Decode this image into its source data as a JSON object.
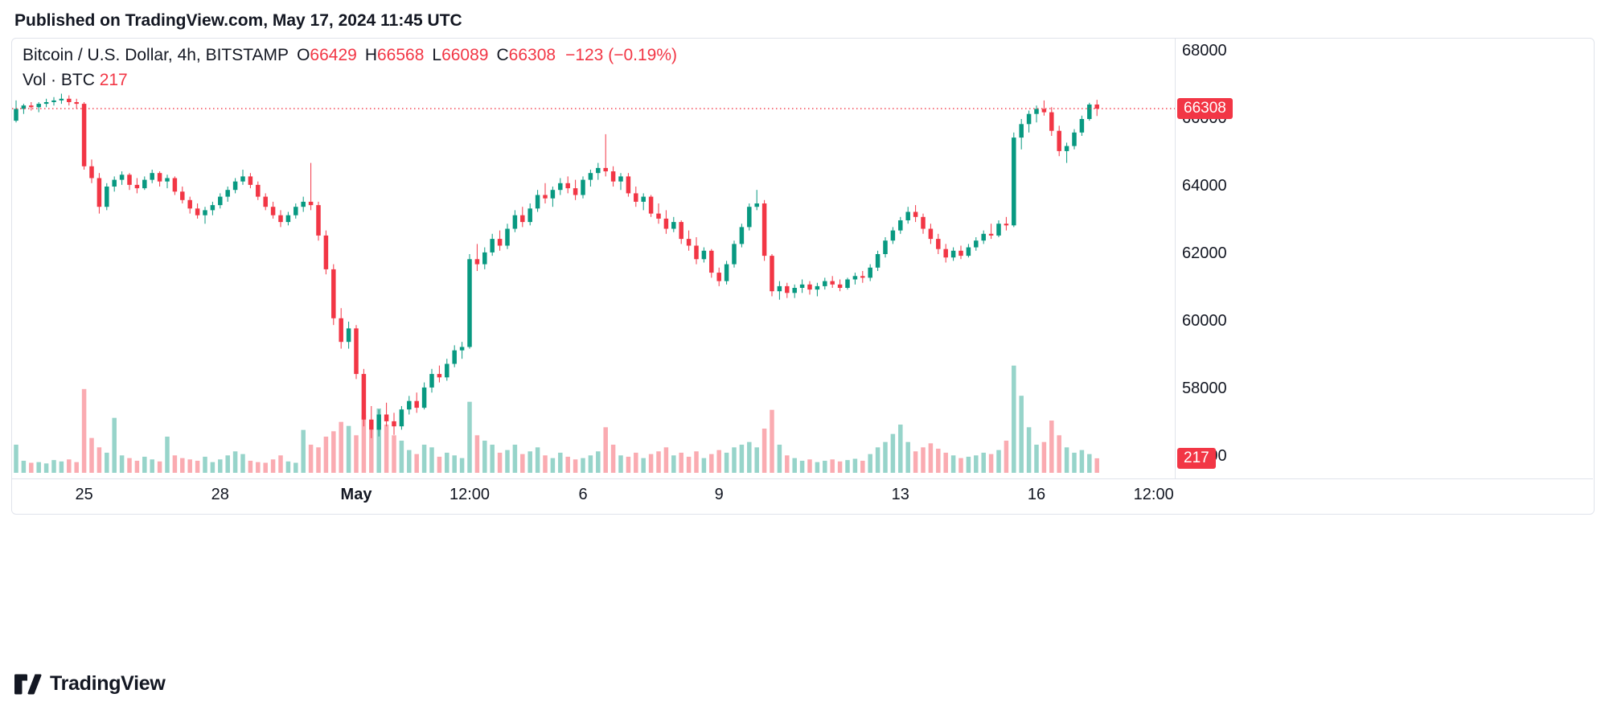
{
  "header": {
    "published": "Published on TradingView.com, May 17, 2024 11:45 UTC"
  },
  "legend": {
    "symbol": "Bitcoin / U.S. Dollar, 4h, BITSTAMP",
    "o_label": "O",
    "open": "66429",
    "h_label": "H",
    "high": "66568",
    "l_label": "L",
    "low": "66089",
    "c_label": "C",
    "close": "66308",
    "change": "−123 (−0.19%)",
    "vol_label": "Vol · BTC",
    "vol_value": "217"
  },
  "badges": {
    "price": "66308",
    "volume": "217"
  },
  "footer": {
    "brand": "TradingView"
  },
  "colors": {
    "up": "#089981",
    "down": "#f23645",
    "accent": "#f23645",
    "text": "#131722",
    "border": "#e0e3eb"
  },
  "chart_data": {
    "type": "candlestick",
    "title": "Bitcoin / U.S. Dollar, 4h, BITSTAMP",
    "interval": "4h",
    "exchange": "BITSTAMP",
    "ylim": [
      56000,
      68000
    ],
    "grid": false,
    "last": {
      "open": 66429,
      "high": 66568,
      "low": 66089,
      "close": 66308,
      "change": -123,
      "change_pct": -0.19,
      "volume": 217
    },
    "price_axis": {
      "ticks": [
        68000,
        66000,
        64000,
        62000,
        60000,
        58000,
        56000
      ]
    },
    "time_axis": {
      "labels": [
        {
          "text": "25",
          "index": 9
        },
        {
          "text": "28",
          "index": 27
        },
        {
          "text": "May",
          "index": 45,
          "emphasis": true
        },
        {
          "text": "12:00",
          "index": 60
        },
        {
          "text": "6",
          "index": 75
        },
        {
          "text": "9",
          "index": 93
        },
        {
          "text": "13",
          "index": 117
        },
        {
          "text": "16",
          "index": 135
        },
        {
          "text": "12:00",
          "index": 150.5
        }
      ]
    },
    "candles": [
      [
        65950,
        66550,
        65900,
        66300
      ],
      [
        66300,
        66450,
        66150,
        66400
      ],
      [
        66400,
        66500,
        66250,
        66350
      ],
      [
        66350,
        66500,
        66200,
        66450
      ],
      [
        66450,
        66600,
        66350,
        66500
      ],
      [
        66500,
        66650,
        66400,
        66550
      ],
      [
        66550,
        66750,
        66450,
        66600
      ],
      [
        66600,
        66700,
        66400,
        66500
      ],
      [
        66500,
        66600,
        66300,
        66450
      ],
      [
        66450,
        66500,
        64500,
        64600
      ],
      [
        64600,
        64800,
        64100,
        64250
      ],
      [
        64250,
        64400,
        63200,
        63400
      ],
      [
        63400,
        64100,
        63300,
        64000
      ],
      [
        64000,
        64300,
        63850,
        64200
      ],
      [
        64200,
        64450,
        64050,
        64350
      ],
      [
        64350,
        64400,
        63900,
        64050
      ],
      [
        64050,
        64250,
        63800,
        63950
      ],
      [
        63950,
        64300,
        63900,
        64200
      ],
      [
        64200,
        64500,
        64100,
        64400
      ],
      [
        64400,
        64450,
        64000,
        64150
      ],
      [
        64150,
        64350,
        63950,
        64250
      ],
      [
        64250,
        64300,
        63750,
        63850
      ],
      [
        63850,
        64000,
        63500,
        63600
      ],
      [
        63600,
        63700,
        63200,
        63350
      ],
      [
        63350,
        63500,
        63050,
        63150
      ],
      [
        63150,
        63400,
        62900,
        63300
      ],
      [
        63300,
        63550,
        63150,
        63450
      ],
      [
        63450,
        63800,
        63350,
        63700
      ],
      [
        63700,
        64000,
        63550,
        63900
      ],
      [
        63900,
        64250,
        63800,
        64150
      ],
      [
        64150,
        64500,
        64050,
        64300
      ],
      [
        64300,
        64400,
        63950,
        64050
      ],
      [
        64050,
        64150,
        63600,
        63700
      ],
      [
        63700,
        63800,
        63300,
        63400
      ],
      [
        63400,
        63550,
        63050,
        63150
      ],
      [
        63150,
        63300,
        62800,
        62950
      ],
      [
        62950,
        63250,
        62850,
        63150
      ],
      [
        63150,
        63500,
        63050,
        63400
      ],
      [
        63400,
        63700,
        63250,
        63550
      ],
      [
        63550,
        64700,
        63300,
        63450
      ],
      [
        63450,
        63550,
        62400,
        62550
      ],
      [
        62550,
        62700,
        61400,
        61550
      ],
      [
        61550,
        61700,
        59900,
        60100
      ],
      [
        60100,
        60400,
        59200,
        59400
      ],
      [
        59400,
        60000,
        59200,
        59800
      ],
      [
        59800,
        59900,
        58300,
        58450
      ],
      [
        58450,
        58600,
        56900,
        57100
      ],
      [
        57100,
        57500,
        56550,
        56800
      ],
      [
        56800,
        57400,
        56600,
        57250
      ],
      [
        57250,
        57600,
        56900,
        57050
      ],
      [
        57050,
        57300,
        56650,
        56900
      ],
      [
        56900,
        57500,
        56800,
        57400
      ],
      [
        57400,
        57800,
        57250,
        57650
      ],
      [
        57650,
        57900,
        57300,
        57450
      ],
      [
        57450,
        58200,
        57400,
        58050
      ],
      [
        58050,
        58600,
        57900,
        58450
      ],
      [
        58450,
        58700,
        58200,
        58350
      ],
      [
        58350,
        58900,
        58250,
        58750
      ],
      [
        58750,
        59300,
        58650,
        59150
      ],
      [
        59150,
        59400,
        58900,
        59250
      ],
      [
        59250,
        62000,
        59200,
        61850
      ],
      [
        61850,
        62300,
        61500,
        61700
      ],
      [
        61700,
        62200,
        61550,
        62050
      ],
      [
        62050,
        62600,
        61950,
        62450
      ],
      [
        62450,
        62700,
        62100,
        62250
      ],
      [
        62250,
        62900,
        62150,
        62750
      ],
      [
        62750,
        63300,
        62650,
        63150
      ],
      [
        63150,
        63400,
        62800,
        62950
      ],
      [
        62950,
        63500,
        62850,
        63350
      ],
      [
        63350,
        63900,
        63250,
        63750
      ],
      [
        63750,
        64100,
        63500,
        63650
      ],
      [
        63650,
        64000,
        63400,
        63900
      ],
      [
        63900,
        64250,
        63750,
        64100
      ],
      [
        64100,
        64300,
        63800,
        63950
      ],
      [
        63950,
        64200,
        63600,
        63750
      ],
      [
        63750,
        64300,
        63650,
        64200
      ],
      [
        64200,
        64500,
        64000,
        64400
      ],
      [
        64400,
        64700,
        64200,
        64550
      ],
      [
        64550,
        65550,
        64300,
        64450
      ],
      [
        64450,
        64600,
        64000,
        64150
      ],
      [
        64150,
        64400,
        63900,
        64300
      ],
      [
        64300,
        64400,
        63700,
        63800
      ],
      [
        63800,
        64000,
        63400,
        63550
      ],
      [
        63550,
        63800,
        63300,
        63700
      ],
      [
        63700,
        63750,
        63100,
        63200
      ],
      [
        63200,
        63500,
        62900,
        63050
      ],
      [
        63050,
        63300,
        62600,
        62750
      ],
      [
        62750,
        63100,
        62650,
        62950
      ],
      [
        62950,
        63000,
        62300,
        62450
      ],
      [
        62450,
        62700,
        62100,
        62250
      ],
      [
        62250,
        62500,
        61700,
        61850
      ],
      [
        61850,
        62200,
        61750,
        62100
      ],
      [
        62100,
        62150,
        61300,
        61450
      ],
      [
        61450,
        61600,
        61050,
        61200
      ],
      [
        61200,
        61800,
        61100,
        61700
      ],
      [
        61700,
        62400,
        61600,
        62300
      ],
      [
        62300,
        62900,
        62200,
        62800
      ],
      [
        62800,
        63500,
        62700,
        63400
      ],
      [
        63400,
        63900,
        63300,
        63500
      ],
      [
        63500,
        63600,
        61800,
        61950
      ],
      [
        61950,
        62000,
        60750,
        60900
      ],
      [
        60900,
        61200,
        60650,
        61050
      ],
      [
        61050,
        61150,
        60700,
        60850
      ],
      [
        60850,
        61100,
        60700,
        61000
      ],
      [
        61000,
        61250,
        60850,
        61100
      ],
      [
        61100,
        61200,
        60800,
        60950
      ],
      [
        60950,
        61150,
        60750,
        61050
      ],
      [
        61050,
        61300,
        60950,
        61200
      ],
      [
        61200,
        61350,
        61000,
        61100
      ],
      [
        61100,
        61250,
        60900,
        61000
      ],
      [
        61000,
        61300,
        60950,
        61250
      ],
      [
        61250,
        61450,
        61100,
        61350
      ],
      [
        61350,
        61500,
        61150,
        61300
      ],
      [
        61300,
        61700,
        61200,
        61600
      ],
      [
        61600,
        62100,
        61500,
        62000
      ],
      [
        62000,
        62500,
        61900,
        62400
      ],
      [
        62400,
        62800,
        62300,
        62700
      ],
      [
        62700,
        63100,
        62600,
        63000
      ],
      [
        63000,
        63400,
        62900,
        63250
      ],
      [
        63250,
        63450,
        62950,
        63100
      ],
      [
        63100,
        63200,
        62600,
        62750
      ],
      [
        62750,
        62900,
        62300,
        62450
      ],
      [
        62450,
        62600,
        62000,
        62150
      ],
      [
        62150,
        62300,
        61750,
        61900
      ],
      [
        61900,
        62200,
        61800,
        62100
      ],
      [
        62100,
        62250,
        61850,
        61950
      ],
      [
        61950,
        62300,
        61900,
        62200
      ],
      [
        62200,
        62500,
        62100,
        62400
      ],
      [
        62400,
        62700,
        62300,
        62600
      ],
      [
        62600,
        62900,
        62450,
        62550
      ],
      [
        62550,
        63000,
        62500,
        62900
      ],
      [
        62900,
        63100,
        62700,
        62850
      ],
      [
        62850,
        65600,
        62800,
        65450
      ],
      [
        65450,
        66000,
        65100,
        65850
      ],
      [
        65850,
        66250,
        65600,
        66150
      ],
      [
        66150,
        66400,
        65900,
        66300
      ],
      [
        66300,
        66550,
        66100,
        66200
      ],
      [
        66200,
        66350,
        65500,
        65650
      ],
      [
        65650,
        65800,
        64900,
        65050
      ],
      [
        65050,
        65300,
        64700,
        65200
      ],
      [
        65200,
        65700,
        65100,
        65600
      ],
      [
        65600,
        66100,
        65500,
        66000
      ],
      [
        66000,
        66480,
        65950,
        66429
      ],
      [
        66429,
        66568,
        66089,
        66308
      ]
    ],
    "volumes": [
      420,
      180,
      150,
      160,
      140,
      190,
      170,
      200,
      160,
      1250,
      520,
      380,
      300,
      820,
      260,
      220,
      180,
      240,
      200,
      170,
      540,
      260,
      220,
      200,
      180,
      240,
      160,
      200,
      260,
      320,
      280,
      180,
      160,
      150,
      200,
      260,
      170,
      150,
      640,
      420,
      380,
      540,
      620,
      760,
      700,
      560,
      860,
      640,
      960,
      720,
      560,
      480,
      340,
      280,
      420,
      380,
      240,
      300,
      260,
      220,
      1060,
      560,
      480,
      420,
      300,
      340,
      420,
      280,
      320,
      380,
      260,
      220,
      300,
      240,
      200,
      220,
      260,
      320,
      680,
      420,
      260,
      240,
      300,
      220,
      280,
      320,
      380,
      260,
      300,
      240,
      320,
      220,
      280,
      340,
      300,
      380,
      420,
      460,
      380,
      660,
      940,
      420,
      260,
      220,
      180,
      200,
      160,
      180,
      200,
      170,
      190,
      210,
      180,
      280,
      380,
      460,
      580,
      720,
      460,
      320,
      380,
      440,
      360,
      300,
      260,
      220,
      240,
      260,
      300,
      280,
      340,
      480,
      1600,
      1150,
      680,
      420,
      460,
      780,
      560,
      380,
      300,
      340,
      280,
      217
    ]
  }
}
